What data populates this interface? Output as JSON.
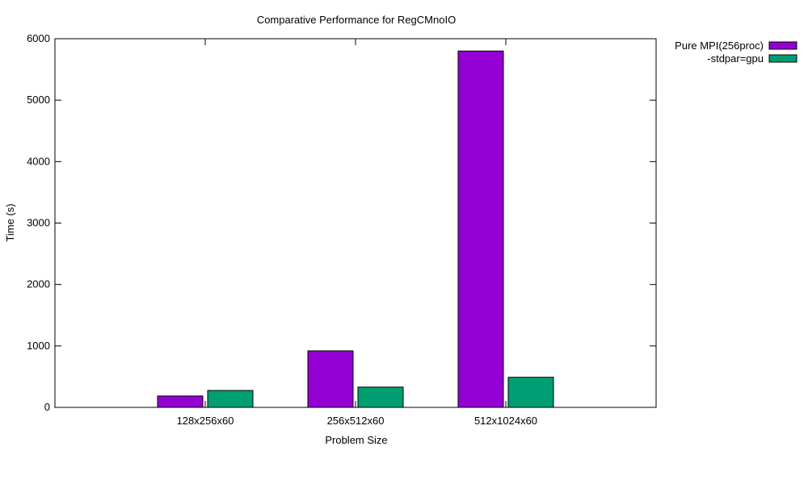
{
  "chart_data": {
    "type": "bar",
    "title": "Comparative Performance for RegCMnoIO",
    "xlabel": "Problem Size",
    "ylabel": "Time (s)",
    "categories": [
      "128x256x60",
      "256x512x60",
      "512x1024x60"
    ],
    "ylim": [
      0,
      6000
    ],
    "yticks": [
      0,
      1000,
      2000,
      3000,
      4000,
      5000,
      6000
    ],
    "grid": false,
    "legend_position": "outside-top-right",
    "series": [
      {
        "name": "Pure MPI(256proc)",
        "color": "#9400d3",
        "values": [
          185,
          920,
          5800
        ]
      },
      {
        "name": "-stdpar=gpu",
        "color": "#009e73",
        "values": [
          275,
          330,
          490
        ]
      }
    ]
  }
}
